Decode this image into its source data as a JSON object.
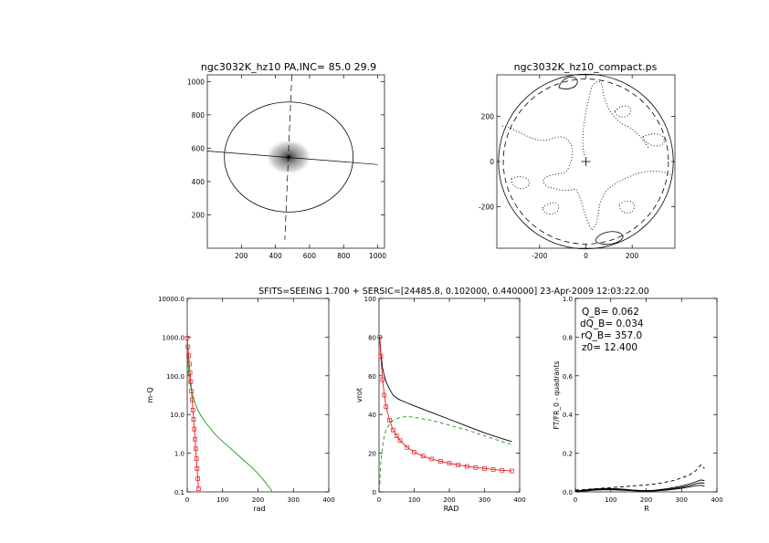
{
  "header": "SFITS=SEEING 1.700 + SERSIC=[24485.8, 0.102000, 0.440000]  23-Apr-2009 12:03:22.00",
  "chart_data": [
    {
      "id": "galaxy-image",
      "type": "image",
      "title": "ngc3032K_hz10 PA,INC= 85.0 29.9",
      "xlim": [
        0,
        1040
      ],
      "ylim": [
        0,
        1040
      ],
      "xticks": [
        "200",
        "400",
        "600",
        "800",
        "1000"
      ],
      "yticks": [
        "200",
        "400",
        "600",
        "800",
        "1000"
      ],
      "center": [
        478,
        547
      ],
      "ellipse": {
        "cx": 478,
        "cy": 547,
        "rx": 378,
        "ry": 330
      },
      "major_axis_line": {
        "x": [
          0,
          1000
        ],
        "y": [
          583,
          502
        ],
        "style": "solid"
      },
      "minor_axis_line": {
        "x": [
          496,
          455
        ],
        "y": [
          1040,
          50
        ],
        "style": "dashed"
      }
    },
    {
      "id": "contour-map",
      "type": "contour",
      "title": "ngc3032K_hz10_compact.ps",
      "xlim": [
        -385,
        385
      ],
      "ylim": [
        -385,
        385
      ],
      "xticks": [
        "-200",
        "0",
        "200"
      ],
      "yticks": [
        "-200",
        "0",
        "200"
      ],
      "outer_circle_radius": 378,
      "dashed_circle_radius": 357
    },
    {
      "id": "profile-m-q",
      "type": "line",
      "xlabel": "rad",
      "ylabel": "m-Q",
      "xlim": [
        0,
        400
      ],
      "ylim": [
        0.1,
        10000.0
      ],
      "yscale": "log",
      "xticks": [
        "0",
        "100",
        "200",
        "300",
        "400"
      ],
      "yticks": [
        "0.1",
        "1.0",
        "10.0",
        "100.0",
        "1000.0",
        "10000.0"
      ],
      "series": [
        {
          "color": "#e41a1c",
          "marker": "square",
          "x": [
            0,
            2,
            4,
            6,
            8,
            10,
            12,
            14,
            16,
            18,
            20,
            22,
            24,
            26,
            28,
            30,
            32
          ],
          "y": [
            950,
            560,
            330,
            200,
            120,
            70,
            40,
            24,
            13,
            7.5,
            4.2,
            2.3,
            1.3,
            0.72,
            0.4,
            0.22,
            0.12
          ]
        },
        {
          "color": "#1a9a1a",
          "x": [
            0,
            3,
            6,
            10,
            14,
            20,
            30,
            40,
            50,
            60,
            80,
            100,
            120,
            140,
            160,
            180,
            200,
            220,
            235,
            240
          ],
          "y": [
            700,
            180,
            80,
            50,
            35,
            22,
            13,
            9,
            6.5,
            5,
            3,
            2,
            1.4,
            0.95,
            0.65,
            0.45,
            0.3,
            0.18,
            0.12,
            0.1
          ]
        }
      ]
    },
    {
      "id": "rotation-curve",
      "type": "line",
      "xlabel": "RAD",
      "ylabel": "vrot",
      "xlim": [
        0,
        400
      ],
      "ylim": [
        0,
        100
      ],
      "xticks": [
        "0",
        "100",
        "200",
        "300",
        "400"
      ],
      "yticks": [
        "0",
        "20",
        "40",
        "60",
        "80",
        "100"
      ],
      "series": [
        {
          "color": "#000000",
          "x": [
            2,
            5,
            10,
            15,
            20,
            30,
            40,
            50,
            60,
            80,
            100,
            150,
            200,
            250,
            300,
            350,
            378
          ],
          "y": [
            80,
            72,
            64,
            60,
            57,
            53,
            50,
            48.5,
            47.5,
            46,
            44.5,
            41,
            37.5,
            34,
            30.5,
            27.5,
            26
          ]
        },
        {
          "color": "#1a9a1a",
          "dash": true,
          "x": [
            2,
            5,
            10,
            15,
            20,
            30,
            40,
            60,
            80,
            100,
            150,
            200,
            250,
            300,
            350,
            378
          ],
          "y": [
            4,
            15,
            24,
            29,
            32,
            35,
            37,
            38.5,
            39,
            38.5,
            37,
            34.5,
            32,
            29,
            26,
            24.5
          ]
        },
        {
          "color": "#e41a1c",
          "marker": "square",
          "x": [
            2,
            5,
            10,
            15,
            20,
            30,
            40,
            50,
            60,
            80,
            100,
            125,
            150,
            175,
            200,
            225,
            250,
            275,
            300,
            325,
            350,
            378
          ],
          "y": [
            80,
            70,
            58,
            50,
            44,
            37,
            32,
            29,
            26.5,
            23,
            20.5,
            18.5,
            17,
            15.8,
            14.8,
            13.9,
            13.2,
            12.6,
            12.1,
            11.6,
            11.2,
            10.8
          ]
        }
      ]
    },
    {
      "id": "qt-profile",
      "type": "line",
      "xlabel": "R",
      "ylabel": "FT/FR_0 - quadrants",
      "xlim": [
        0,
        400
      ],
      "ylim": [
        0,
        1.0
      ],
      "xticks": [
        "0",
        "100",
        "200",
        "300",
        "400"
      ],
      "yticks": [
        "0.0",
        "0.2",
        "0.4",
        "0.6",
        "0.8",
        "1.0"
      ],
      "annotations": [
        "Q_B=  0.062",
        "dQ_B=  0.034",
        "rQ_B=  357.0",
        "z0= 12.400"
      ],
      "series": [
        {
          "color": "#000000",
          "x": [
            0,
            20,
            40,
            60,
            80,
            100,
            120,
            140,
            160,
            180,
            200,
            220,
            240,
            260,
            280,
            300,
            320,
            340,
            355,
            365
          ],
          "y": [
            0.006,
            0.008,
            0.013,
            0.016,
            0.017,
            0.017,
            0.016,
            0.013,
            0.01,
            0.008,
            0.007,
            0.008,
            0.012,
            0.017,
            0.023,
            0.03,
            0.04,
            0.052,
            0.062,
            0.058
          ]
        },
        {
          "color": "#000000",
          "x": [
            0,
            20,
            40,
            60,
            80,
            100,
            120,
            140,
            160,
            180,
            200,
            220,
            240,
            260,
            280,
            300,
            320,
            340,
            355,
            365
          ],
          "y": [
            0.004,
            0.005,
            0.01,
            0.013,
            0.014,
            0.014,
            0.013,
            0.011,
            0.008,
            0.006,
            0.005,
            0.006,
            0.009,
            0.013,
            0.018,
            0.024,
            0.032,
            0.042,
            0.047,
            0.044
          ]
        },
        {
          "color": "#000000",
          "x": [
            0,
            20,
            40,
            60,
            80,
            100,
            120,
            140,
            160,
            180,
            200,
            220,
            240,
            260,
            280,
            300,
            320,
            340,
            355,
            365
          ],
          "y": [
            0.002,
            0.003,
            0.007,
            0.01,
            0.011,
            0.011,
            0.01,
            0.008,
            0.006,
            0.004,
            0.003,
            0.004,
            0.007,
            0.01,
            0.014,
            0.019,
            0.025,
            0.032,
            0.034,
            0.03
          ]
        },
        {
          "color": "#000000",
          "dash": true,
          "x": [
            0,
            40,
            80,
            120,
            160,
            200,
            240,
            280,
            320,
            340,
            355,
            365
          ],
          "y": [
            0.01,
            0.014,
            0.02,
            0.025,
            0.03,
            0.036,
            0.045,
            0.06,
            0.085,
            0.11,
            0.14,
            0.12
          ]
        }
      ]
    }
  ]
}
